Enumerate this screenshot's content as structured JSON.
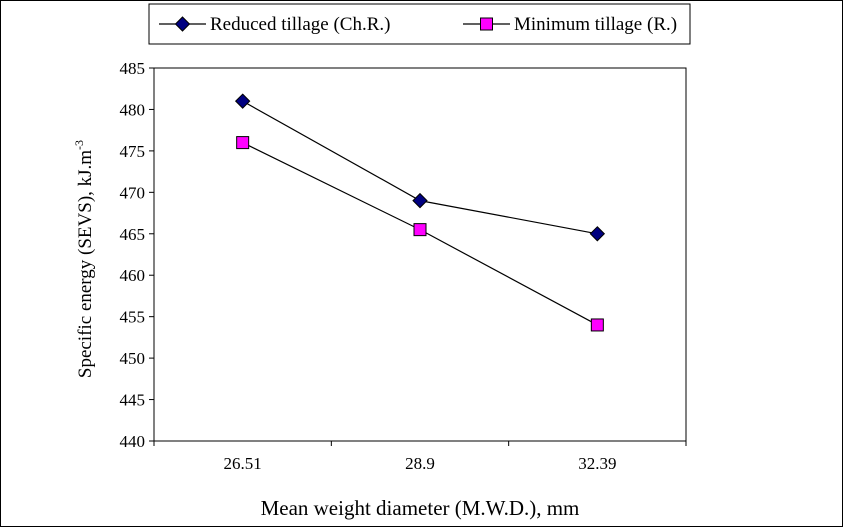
{
  "chart_data": {
    "type": "line",
    "categories": [
      "26.51",
      "28.9",
      "32.39"
    ],
    "series": [
      {
        "name": "Reduced tillage (Ch.R.)",
        "values": [
          481,
          469,
          465
        ],
        "color": "#000080",
        "marker": "diamond"
      },
      {
        "name": "Minimum tillage (R.)",
        "values": [
          476,
          465.5,
          454
        ],
        "color": "#ff00ff",
        "marker": "square"
      }
    ],
    "xlabel": "Mean weight diameter (M.W.D.), mm",
    "ylabel_main": "Specific energy (SEVS),  kJ.m",
    "ylabel_sup": "-3",
    "ylim": [
      440,
      485
    ],
    "ytick_step": 5,
    "grid": false,
    "legend": "top"
  }
}
